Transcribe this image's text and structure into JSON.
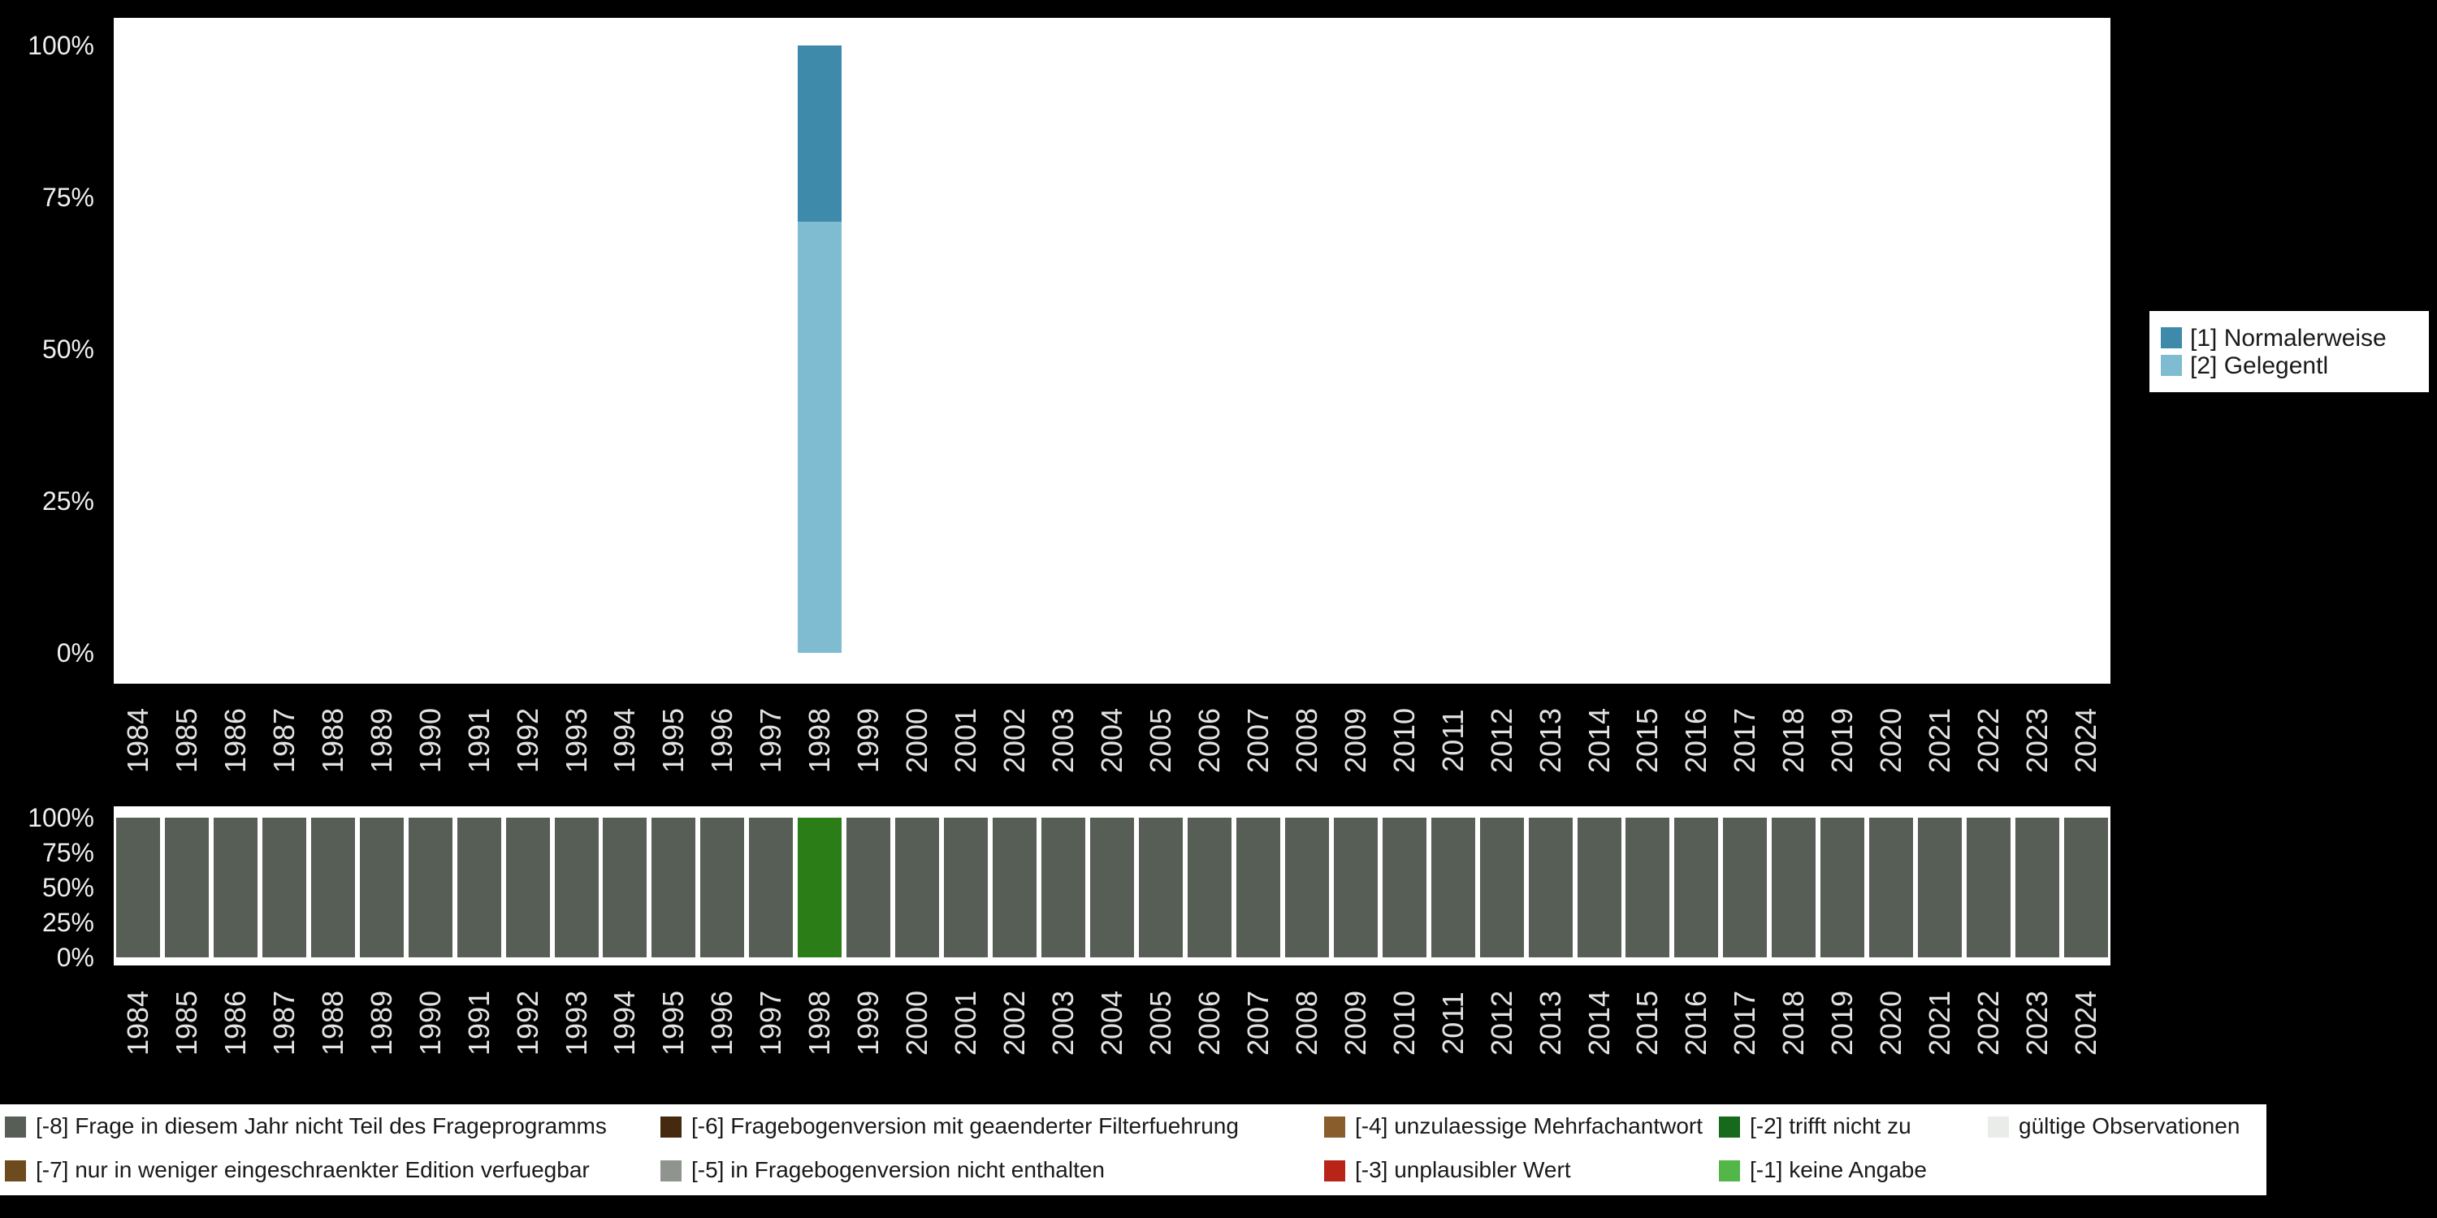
{
  "chart_data": [
    {
      "type": "bar",
      "stacked": true,
      "title": "",
      "categories": [
        "1984",
        "1985",
        "1986",
        "1987",
        "1988",
        "1989",
        "1990",
        "1991",
        "1992",
        "1993",
        "1994",
        "1995",
        "1996",
        "1997",
        "1998",
        "1999",
        "2000",
        "2001",
        "2002",
        "2003",
        "2004",
        "2005",
        "2006",
        "2007",
        "2008",
        "2009",
        "2010",
        "2011",
        "2012",
        "2013",
        "2014",
        "2015",
        "2016",
        "2017",
        "2018",
        "2019",
        "2020",
        "2021",
        "2022",
        "2023",
        "2024"
      ],
      "ylim": [
        0,
        100
      ],
      "ytick_labels": [
        "100%",
        "75%",
        "50%",
        "25%",
        "0%"
      ],
      "grid": false,
      "legend_position": "right",
      "series": [
        {
          "name": "[1] Normalerweise",
          "color": "#3d8aab",
          "values": [
            0,
            0,
            0,
            0,
            0,
            0,
            0,
            0,
            0,
            0,
            0,
            0,
            0,
            0,
            29,
            0,
            0,
            0,
            0,
            0,
            0,
            0,
            0,
            0,
            0,
            0,
            0,
            0,
            0,
            0,
            0,
            0,
            0,
            0,
            0,
            0,
            0,
            0,
            0,
            0,
            0
          ]
        },
        {
          "name": "[2] Gelegentl",
          "color": "#80bcd1",
          "values": [
            0,
            0,
            0,
            0,
            0,
            0,
            0,
            0,
            0,
            0,
            0,
            0,
            0,
            0,
            71,
            0,
            0,
            0,
            0,
            0,
            0,
            0,
            0,
            0,
            0,
            0,
            0,
            0,
            0,
            0,
            0,
            0,
            0,
            0,
            0,
            0,
            0,
            0,
            0,
            0,
            0
          ]
        }
      ]
    },
    {
      "type": "bar",
      "stacked": false,
      "title": "",
      "categories": [
        "1984",
        "1985",
        "1986",
        "1987",
        "1988",
        "1989",
        "1990",
        "1991",
        "1992",
        "1993",
        "1994",
        "1995",
        "1996",
        "1997",
        "1998",
        "1999",
        "2000",
        "2001",
        "2002",
        "2003",
        "2004",
        "2005",
        "2006",
        "2007",
        "2008",
        "2009",
        "2010",
        "2011",
        "2012",
        "2013",
        "2014",
        "2015",
        "2016",
        "2017",
        "2018",
        "2019",
        "2020",
        "2021",
        "2022",
        "2023",
        "2024"
      ],
      "ylim": [
        0,
        100
      ],
      "ytick_labels": [
        "100%",
        "75%",
        "50%",
        "25%",
        "0%"
      ],
      "values": [
        100,
        100,
        100,
        100,
        100,
        100,
        100,
        100,
        100,
        100,
        100,
        100,
        100,
        100,
        100,
        100,
        100,
        100,
        100,
        100,
        100,
        100,
        100,
        100,
        100,
        100,
        100,
        100,
        100,
        100,
        100,
        100,
        100,
        100,
        100,
        100,
        100,
        100,
        100,
        100,
        100
      ],
      "default_bar_color": "#565e55",
      "bar_color_overrides": {
        "1998": "#2b7e17"
      }
    }
  ],
  "top_legend": {
    "items": [
      {
        "label": "[1] Normalerweise",
        "color": "#3d8aab"
      },
      {
        "label": "[2] Gelegentl",
        "color": "#80bcd1"
      }
    ]
  },
  "missing_legend": {
    "rows": [
      [
        {
          "label": "[-8] Frage in diesem Jahr nicht Teil des Frageprogramms",
          "color": "#565e55"
        },
        {
          "label": "[-6] Fragebogenversion mit geaenderter Filterfuehrung",
          "color": "#452a10"
        },
        {
          "label": "[-4] unzulaessige Mehrfachantwort",
          "color": "#8a5d2c"
        },
        {
          "label": "[-2] trifft nicht zu",
          "color": "#17691c"
        },
        {
          "label": "gültige Observationen",
          "color": "#eaece9"
        }
      ],
      [
        {
          "label": "[-7] nur in weniger eingeschraenkter Edition verfuegbar",
          "color": "#6e4a1f"
        },
        {
          "label": "[-5] in Fragebogenversion nicht enthalten",
          "color": "#8f948e"
        },
        {
          "label": "[-3] unplausibler Wert",
          "color": "#b92419"
        },
        {
          "label": "[-1] keine Angabe",
          "color": "#53b649"
        }
      ]
    ]
  }
}
